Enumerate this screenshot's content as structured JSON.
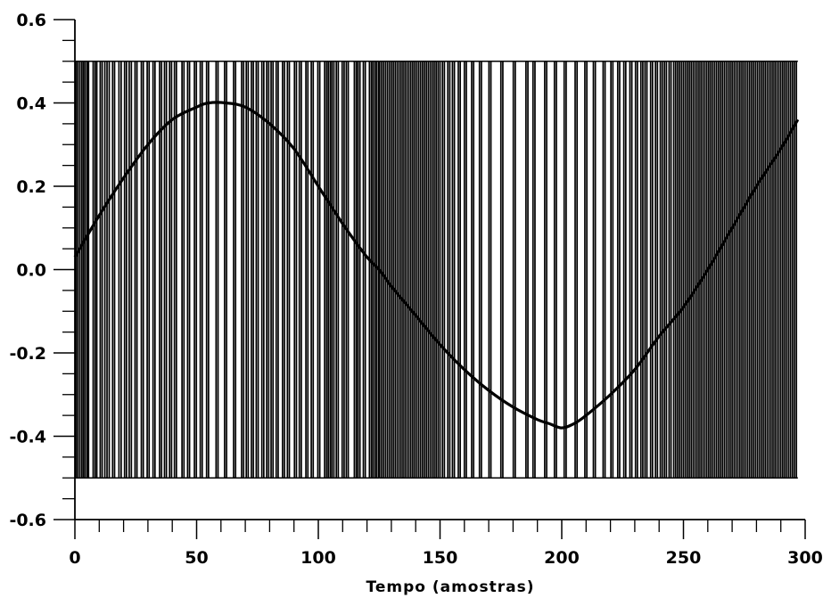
{
  "chart_data": {
    "type": "line",
    "title": "",
    "xlabel": "Tempo (amostras)",
    "ylabel": "",
    "xlim": [
      0,
      300
    ],
    "ylim": [
      -0.6,
      0.6
    ],
    "x_ticks": [
      0,
      50,
      100,
      150,
      200,
      250,
      300
    ],
    "x_tick_labels": [
      "0",
      "50",
      "100",
      "150",
      "200",
      "250",
      "300"
    ],
    "y_ticks": [
      -0.6,
      -0.4,
      -0.2,
      0.0,
      0.2,
      0.4,
      0.6
    ],
    "y_tick_labels": [
      "-0.6",
      "-0.4",
      "-0.2",
      "0.0",
      "0.2",
      "0.4",
      "0.6"
    ],
    "grid": false,
    "series": [
      {
        "kind": "pulse",
        "high": 0.5,
        "low": -0.5,
        "color": "#000000",
        "segments": [
          {
            "from": 0,
            "to": 125,
            "toggles": [
              0.5,
              1.2,
              2,
              2.8,
              3.5,
              4.2,
              5,
              5.6,
              7.5,
              8.3,
              9,
              10.4,
              11.2,
              12.3,
              13.2,
              14.1,
              15.5,
              16.3,
              18.1,
              19,
              20.4,
              21.2,
              22.3,
              23.2,
              24.7,
              25.5,
              27.3,
              28.1,
              29.7,
              30.5,
              32.1,
              32.9,
              34.8,
              35.6,
              36.8,
              37.6,
              38.9,
              39.7,
              40.9,
              41.7,
              44,
              44.8,
              46.3,
              47.1,
              49.1,
              49.9,
              51.5,
              52.3,
              54.1,
              54.9,
              58,
              58.8,
              61.5,
              62.3,
              65.2,
              66,
              68.5,
              69.3,
              70.4,
              71.2,
              72.5,
              73.3,
              74.5,
              75.3,
              76.8,
              77.6,
              78.8,
              79.6,
              80.6,
              81.4,
              82.7,
              83.5,
              85.3,
              86.1,
              87.3,
              88.1,
              90.2,
              91,
              92.2,
              93,
              94.9,
              95.7,
              97.1,
              97.9,
              99.8,
              100.6,
              102.6,
              103.4,
              104.1,
              104.9,
              105.6,
              106.4,
              107.4,
              108.2,
              109.8,
              110.6,
              111.5,
              112.3,
              114.8,
              115.6,
              116.3,
              117.1,
              118.5,
              119.3,
              121,
              121.8,
              122.5,
              123.3,
              124,
              124.8
            ]
          },
          {
            "from": 125,
            "to": 270,
            "toggles": [
              125.2,
              126,
              126.8,
              127.6,
              128.4,
              129.2,
              130,
              130.8,
              131.6,
              132.4,
              133.2,
              134,
              134.8,
              135.6,
              136.4,
              137.2,
              138,
              138.8,
              139.6,
              140.4,
              141.2,
              142,
              142.8,
              143.6,
              144.4,
              145.2,
              146,
              146.8,
              147.6,
              148.4,
              149.2,
              150,
              151,
              151.8,
              153.2,
              154,
              155.1,
              155.9,
              157.5,
              158.3,
              160,
              160.8,
              163,
              163.8,
              166.2,
              167,
              170.1,
              170.9,
              175,
              175.8,
              180.1,
              180.9,
              185.3,
              186.1,
              188.2,
              189,
              193,
              193.8,
              197,
              197.8,
              201,
              201.8,
              205.5,
              206.3,
              209.5,
              210.3,
              213,
              213.8,
              217,
              217.8,
              220.2,
              221,
              223,
              223.8,
              225.5,
              226.3,
              228,
              228.8,
              230.3,
              231.1,
              232.5,
              233.3,
              234.2,
              235,
              236.5,
              237.3,
              238.5,
              239.3,
              240.5,
              241.3,
              242.2,
              243,
              244.1,
              244.9,
              246,
              246.8,
              247.6,
              248.4,
              249.2,
              250,
              250.8,
              251.6,
              252.4,
              253.2,
              254,
              254.8,
              255.6,
              256.4,
              257.2,
              258,
              258.8,
              259.6,
              260.4,
              261.2,
              262,
              262.8,
              263.6,
              264.4,
              265.2,
              266,
              266.8,
              267.6,
              268.4,
              269.2
            ]
          },
          {
            "from": 270,
            "to": 297,
            "toggles": [
              270,
              270.8,
              271.6,
              272.4,
              273.2,
              274,
              274.8,
              275.6,
              276.4,
              277.2,
              278,
              278.8,
              279.6,
              280.4,
              281.2,
              282,
              282.8,
              283.6,
              284.4,
              285.2,
              286,
              286.8,
              287.6,
              288.4,
              289.2,
              290,
              290.8,
              291.6,
              292.4,
              293.2,
              294,
              294.8,
              295.6,
              296.4
            ]
          }
        ]
      },
      {
        "kind": "line",
        "color": "#000000",
        "points": [
          [
            0,
            0.03
          ],
          [
            10,
            0.13
          ],
          [
            20,
            0.22
          ],
          [
            30,
            0.3
          ],
          [
            40,
            0.36
          ],
          [
            50,
            0.39
          ],
          [
            55,
            0.4
          ],
          [
            62,
            0.4
          ],
          [
            70,
            0.39
          ],
          [
            80,
            0.35
          ],
          [
            90,
            0.29
          ],
          [
            100,
            0.2
          ],
          [
            110,
            0.11
          ],
          [
            120,
            0.03
          ],
          [
            125,
            0.0
          ],
          [
            130,
            -0.04
          ],
          [
            140,
            -0.11
          ],
          [
            150,
            -0.18
          ],
          [
            160,
            -0.24
          ],
          [
            170,
            -0.29
          ],
          [
            180,
            -0.33
          ],
          [
            190,
            -0.36
          ],
          [
            195,
            -0.37
          ],
          [
            200,
            -0.38
          ],
          [
            205,
            -0.37
          ],
          [
            210,
            -0.35
          ],
          [
            220,
            -0.3
          ],
          [
            230,
            -0.24
          ],
          [
            240,
            -0.16
          ],
          [
            250,
            -0.09
          ],
          [
            260,
            0.0
          ],
          [
            270,
            0.1
          ],
          [
            280,
            0.2
          ],
          [
            290,
            0.29
          ],
          [
            297,
            0.36
          ]
        ]
      }
    ]
  }
}
